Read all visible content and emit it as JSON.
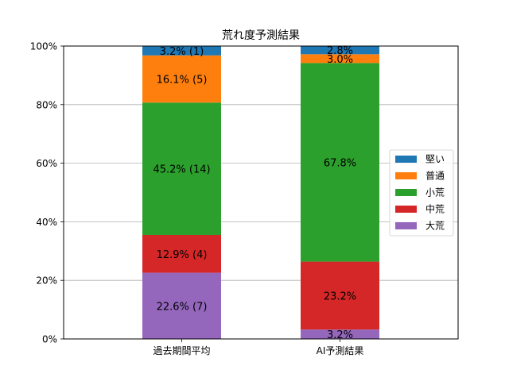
{
  "chart_data": {
    "type": "bar",
    "stacked": true,
    "title": "荒れ度予測結果",
    "xlabel": "",
    "ylabel": "",
    "categories": [
      "過去期間平均",
      "AI予測結果"
    ],
    "ylim": [
      0,
      100
    ],
    "yticks": [
      "0%",
      "20%",
      "40%",
      "60%",
      "80%",
      "100%"
    ],
    "grid": "horizontal",
    "legend_position": "right",
    "series": [
      {
        "name": "大荒",
        "color": "#9467bd",
        "values": [
          22.6,
          3.2
        ],
        "labels": [
          "22.6% (7)",
          "3.2%"
        ]
      },
      {
        "name": "中荒",
        "color": "#d62728",
        "values": [
          12.9,
          23.2
        ],
        "labels": [
          "12.9% (4)",
          "23.2%"
        ]
      },
      {
        "name": "小荒",
        "color": "#2ca02c",
        "values": [
          45.2,
          67.8
        ],
        "labels": [
          "45.2% (14)",
          "67.8%"
        ]
      },
      {
        "name": "普通",
        "color": "#ff7f0e",
        "values": [
          16.1,
          3.0
        ],
        "labels": [
          "16.1% (5)",
          "3.0%"
        ]
      },
      {
        "name": "堅い",
        "color": "#1f77b4",
        "values": [
          3.2,
          2.8
        ],
        "labels": [
          "3.2% (1)",
          "2.8%"
        ]
      }
    ],
    "legend_order": [
      "堅い",
      "普通",
      "小荒",
      "中荒",
      "大荒"
    ]
  }
}
